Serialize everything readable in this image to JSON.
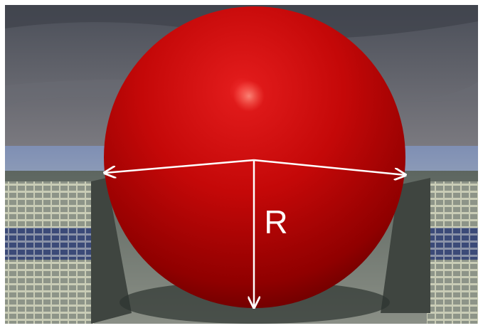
{
  "label": "R"
}
